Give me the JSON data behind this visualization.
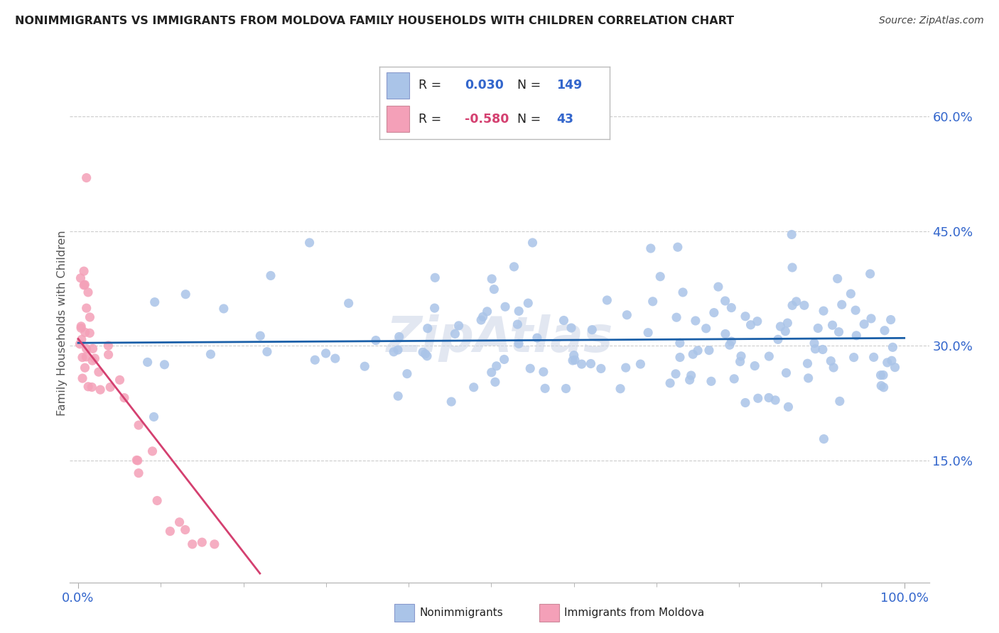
{
  "title": "NONIMMIGRANTS VS IMMIGRANTS FROM MOLDOVA FAMILY HOUSEHOLDS WITH CHILDREN CORRELATION CHART",
  "source": "Source: ZipAtlas.com",
  "ylabel": "Family Households with Children",
  "blue_R": 0.03,
  "blue_N": 149,
  "pink_R": -0.58,
  "pink_N": 43,
  "blue_color": "#aac4e8",
  "pink_color": "#f4a0b8",
  "blue_line_color": "#1a5fa8",
  "pink_line_color": "#d44070",
  "axis_label_color": "#3366cc",
  "title_color": "#222222",
  "source_color": "#444444",
  "ytick_labels": [
    "15.0%",
    "30.0%",
    "45.0%",
    "60.0%"
  ],
  "ytick_values": [
    0.15,
    0.3,
    0.45,
    0.6
  ],
  "xtick_labels": [
    "0.0%",
    "100.0%"
  ],
  "watermark": "ZipAtlas",
  "grid_color": "#cccccc",
  "legend_box_color": "#e8eef8",
  "legend_border_color": "#bbbbbb"
}
